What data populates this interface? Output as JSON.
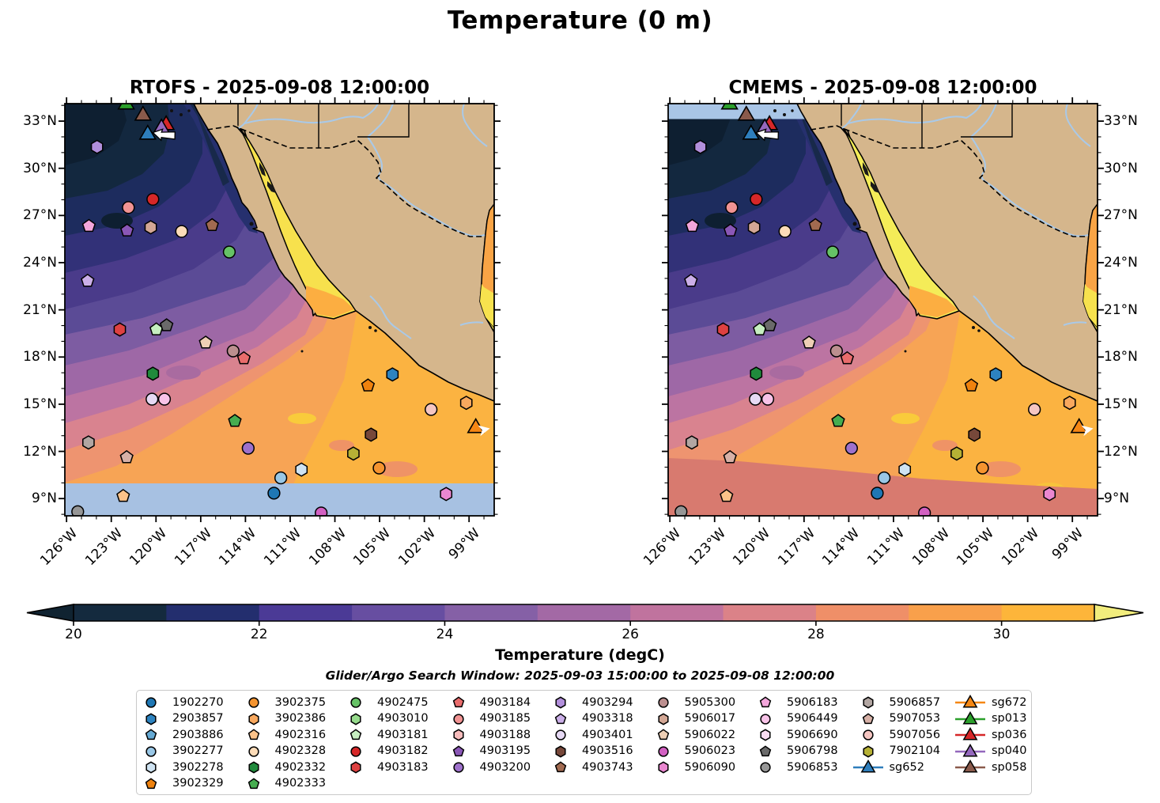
{
  "figure": {
    "title": "Temperature (0 m)",
    "subtitle": "Glider/Argo Search Window: 2025-09-03 15:00:00 to 2025-09-08 12:00:00"
  },
  "chart_data": {
    "type": "heatmap",
    "title": "Temperature (0 m)",
    "panels": [
      {
        "name": "RTOFS",
        "timestamp": "2025-09-08 12:00:00",
        "title": "RTOFS - 2025-09-08 12:00:00",
        "note": "no-data band (light blue) south of ~10N"
      },
      {
        "name": "CMEMS",
        "timestamp": "2025-09-08 12:00:00",
        "title": "CMEMS - 2025-09-08 12:00:00",
        "note": "no-data band (light blue) north of ~33N"
      }
    ],
    "axes": {
      "lon_ticks": [
        "126°W",
        "123°W",
        "120°W",
        "117°W",
        "114°W",
        "111°W",
        "108°W",
        "105°W",
        "102°W",
        "99°W"
      ],
      "lat_ticks": [
        "33°N",
        "30°N",
        "27°N",
        "24°N",
        "21°N",
        "18°N",
        "15°N",
        "12°N",
        "9°N"
      ],
      "lon_range_degW": [
        126.1,
        97.3
      ],
      "lat_range_degN": [
        7.9,
        34.1
      ]
    },
    "colorbar": {
      "label": "Temperature (degC)",
      "tick_labels": [
        "20",
        "22",
        "24",
        "26",
        "28",
        "30"
      ],
      "tick_values": [
        20,
        22,
        24,
        26,
        28,
        30
      ],
      "range_degC": [
        20,
        31
      ],
      "segment_colors": [
        "#142a3e",
        "#232e6e",
        "#4b3a96",
        "#674ea1",
        "#8560a6",
        "#a369a5",
        "#c0739e",
        "#db8288",
        "#ef8f68",
        "#f9a04b",
        "#fdb53a"
      ],
      "tip_left_color": "#102331",
      "tip_right_color": "#f2ed7d"
    },
    "search_window": {
      "start": "2025-09-03 15:00:00",
      "end": "2025-09-08 12:00:00"
    },
    "platforms": [
      {
        "id": "4903294",
        "kind": "argo",
        "shape": "hexagon",
        "color": "#b28fdb",
        "fx": 0.075,
        "fy": 0.105,
        "lon_degW": 123.9,
        "lat_degN": 31.3
      },
      {
        "id": "4903182",
        "kind": "argo",
        "shape": "circle",
        "color": "#d62728",
        "fx": 0.205,
        "fy": 0.232,
        "lon_degW": 120.2,
        "lat_degN": 28.0
      },
      {
        "id": "4903185",
        "kind": "argo",
        "shape": "circle",
        "color": "#f19393",
        "fx": 0.148,
        "fy": 0.252,
        "lon_degW": 121.8,
        "lat_degN": 27.5
      },
      {
        "id": "5906183",
        "kind": "argo",
        "shape": "pentagon",
        "color": "#f3a6db",
        "fx": 0.056,
        "fy": 0.297,
        "lon_degW": 124.5,
        "lat_degN": 26.3
      },
      {
        "id": "4903195",
        "kind": "argo",
        "shape": "pentagon",
        "color": "#8a57b6",
        "fx": 0.145,
        "fy": 0.308,
        "lon_degW": 121.9,
        "lat_degN": 26.0
      },
      {
        "id": "5906017",
        "kind": "argo",
        "shape": "hexagon",
        "color": "#d3a795",
        "fx": 0.2,
        "fy": 0.3,
        "lon_degW": 120.3,
        "lat_degN": 26.2
      },
      {
        "id": "4903743",
        "kind": "argo",
        "shape": "pentagon",
        "color": "#a16a50",
        "fx": 0.343,
        "fy": 0.295,
        "lon_degW": 116.2,
        "lat_degN": 26.4
      },
      {
        "id": "4902328",
        "kind": "argo",
        "shape": "circle",
        "color": "#fddcb8",
        "fx": 0.272,
        "fy": 0.31,
        "lon_degW": 118.3,
        "lat_degN": 26.0
      },
      {
        "id": "4902475",
        "kind": "argo",
        "shape": "circle",
        "color": "#66c266",
        "fx": 0.383,
        "fy": 0.36,
        "lon_degW": 115.1,
        "lat_degN": 24.7
      },
      {
        "id": "4903318",
        "kind": "argo",
        "shape": "pentagon",
        "color": "#cbafe8",
        "fx": 0.053,
        "fy": 0.43,
        "lon_degW": 124.6,
        "lat_degN": 22.8
      },
      {
        "id": "4903183",
        "kind": "argo",
        "shape": "hexagon",
        "color": "#de4141",
        "fx": 0.128,
        "fy": 0.548,
        "lon_degW": 122.4,
        "lat_degN": 19.7
      },
      {
        "id": "4903181",
        "kind": "argo",
        "shape": "pentagon",
        "color": "#c6eec0",
        "fx": 0.213,
        "fy": 0.548,
        "lon_degW": 120.0,
        "lat_degN": 19.7
      },
      {
        "id": "5906798",
        "kind": "argo",
        "shape": "pentagon",
        "color": "#6a6a6a",
        "fx": 0.237,
        "fy": 0.538,
        "lon_degW": 119.3,
        "lat_degN": 20.0
      },
      {
        "id": "5906022",
        "kind": "argo",
        "shape": "pentagon",
        "color": "#eecfb5",
        "fx": 0.328,
        "fy": 0.58,
        "lon_degW": 116.7,
        "lat_degN": 18.9
      },
      {
        "id": "5905300",
        "kind": "argo",
        "shape": "circle",
        "color": "#bc8f8f",
        "fx": 0.392,
        "fy": 0.6,
        "lon_degW": 114.8,
        "lat_degN": 18.4
      },
      {
        "id": "4903184",
        "kind": "argo",
        "shape": "pentagon",
        "color": "#e96c6c",
        "fx": 0.417,
        "fy": 0.618,
        "lon_degW": 114.1,
        "lat_degN": 17.9
      },
      {
        "id": "4902332",
        "kind": "argo",
        "shape": "hexagon",
        "color": "#208a3c",
        "fx": 0.205,
        "fy": 0.655,
        "lon_degW": 120.2,
        "lat_degN": 16.9
      },
      {
        "id": "2903857",
        "kind": "argo",
        "shape": "hexagon",
        "color": "#2d83c0",
        "fx": 0.763,
        "fy": 0.657,
        "lon_degW": 104.1,
        "lat_degN": 16.9
      },
      {
        "id": "3902329",
        "kind": "argo",
        "shape": "pentagon",
        "color": "#ef820e",
        "fx": 0.706,
        "fy": 0.684,
        "lon_degW": 105.8,
        "lat_degN": 16.2
      },
      {
        "id": "4903401",
        "kind": "argo",
        "shape": "circle",
        "color": "#e6d9f4",
        "fx": 0.203,
        "fy": 0.717,
        "lon_degW": 120.3,
        "lat_degN": 15.3
      },
      {
        "id": "5906449",
        "kind": "argo",
        "shape": "circle",
        "color": "#f8c3e8",
        "fx": 0.232,
        "fy": 0.717,
        "lon_degW": 119.4,
        "lat_degN": 15.3
      },
      {
        "id": "3902386",
        "kind": "argo",
        "shape": "hexagon",
        "color": "#f8a85e",
        "fx": 0.935,
        "fy": 0.726,
        "lon_degW": 99.2,
        "lat_degN": 15.1
      },
      {
        "id": "5907056",
        "kind": "argo",
        "shape": "circle",
        "color": "#f5c6c2",
        "fx": 0.853,
        "fy": 0.742,
        "lon_degW": 101.5,
        "lat_degN": 14.7
      },
      {
        "id": "4902333",
        "kind": "argo",
        "shape": "pentagon",
        "color": "#46ad50",
        "fx": 0.396,
        "fy": 0.77,
        "lon_degW": 114.7,
        "lat_degN": 13.9
      },
      {
        "id": "4903516",
        "kind": "argo",
        "shape": "hexagon",
        "color": "#77483a",
        "fx": 0.713,
        "fy": 0.803,
        "lon_degW": 105.6,
        "lat_degN": 13.1
      },
      {
        "id": "5906857",
        "kind": "argo",
        "shape": "hexagon",
        "color": "#b2a6a2",
        "fx": 0.055,
        "fy": 0.822,
        "lon_degW": 124.5,
        "lat_degN": 12.6
      },
      {
        "id": "4903200",
        "kind": "argo",
        "shape": "circle",
        "color": "#9e71cb",
        "fx": 0.427,
        "fy": 0.836,
        "lon_degW": 113.8,
        "lat_degN": 12.2
      },
      {
        "id": "7902104",
        "kind": "argo",
        "shape": "hexagon",
        "color": "#b6b135",
        "fx": 0.672,
        "fy": 0.849,
        "lon_degW": 106.7,
        "lat_degN": 11.9
      },
      {
        "id": "5907053",
        "kind": "argo",
        "shape": "pentagon",
        "color": "#d7b1a7",
        "fx": 0.144,
        "fy": 0.858,
        "lon_degW": 122.0,
        "lat_degN": 11.6
      },
      {
        "id": "3902375",
        "kind": "argo",
        "shape": "circle",
        "color": "#f5942f",
        "fx": 0.732,
        "fy": 0.884,
        "lon_degW": 105.0,
        "lat_degN": 10.9
      },
      {
        "id": "3902278",
        "kind": "argo",
        "shape": "hexagon",
        "color": "#cfe3f2",
        "fx": 0.551,
        "fy": 0.888,
        "lon_degW": 110.2,
        "lat_degN": 10.8
      },
      {
        "id": "3902277",
        "kind": "argo",
        "shape": "circle",
        "color": "#99c7e6",
        "fx": 0.503,
        "fy": 0.908,
        "lon_degW": 111.6,
        "lat_degN": 10.3
      },
      {
        "id": "1902270",
        "kind": "argo",
        "shape": "circle",
        "color": "#1f77b4",
        "fx": 0.487,
        "fy": 0.945,
        "lon_degW": 112.1,
        "lat_degN": 9.3
      },
      {
        "id": "5906090",
        "kind": "argo",
        "shape": "hexagon",
        "color": "#ea87d0",
        "fx": 0.888,
        "fy": 0.947,
        "lon_degW": 100.5,
        "lat_degN": 9.3
      },
      {
        "id": "4902316",
        "kind": "argo",
        "shape": "pentagon",
        "color": "#fbc289",
        "fx": 0.136,
        "fy": 0.952,
        "lon_degW": 122.2,
        "lat_degN": 9.2
      },
      {
        "id": "5906853",
        "kind": "argo",
        "shape": "circle",
        "color": "#969696",
        "fx": 0.03,
        "fy": 0.99,
        "lon_degW": 125.2,
        "lat_degN": 8.2
      },
      {
        "id": "5906023",
        "kind": "argo",
        "shape": "circle",
        "color": "#d260c2",
        "fx": 0.597,
        "fy": 0.993,
        "lon_degW": 108.9,
        "lat_degN": 8.1
      },
      {
        "id": "sg652",
        "kind": "glider",
        "shape": "triangle",
        "color": "#2e7ebc",
        "fx": 0.193,
        "fy": 0.075,
        "lon_degW": 120.5,
        "lat_degN": 32.1
      },
      {
        "id": "sp058",
        "kind": "glider",
        "shape": "triangle",
        "color": "#8a5a4b",
        "fx": 0.182,
        "fy": 0.029,
        "lon_degW": 120.9,
        "lat_degN": 33.3
      },
      {
        "id": "sp036",
        "kind": "glider",
        "shape": "triangle",
        "color": "#d62728",
        "fx": 0.236,
        "fy": 0.052,
        "lon_degW": 119.3,
        "lat_degN": 32.7
      },
      {
        "id": "sp040",
        "kind": "glider",
        "shape": "triangle",
        "color": "#9468bd",
        "fx": 0.225,
        "fy": 0.06,
        "lon_degW": 119.6,
        "lat_degN": 32.5
      },
      {
        "id": "sp013",
        "kind": "glider",
        "shape": "triangle",
        "color": "#2ca02c",
        "fx": 0.143,
        "fy": 0.002,
        "lon_degW": 122.0,
        "lat_degN": 34.0
      },
      {
        "id": "sg672",
        "kind": "glider",
        "shape": "triangle",
        "color": "#f58714",
        "fx": 0.957,
        "fy": 0.787,
        "lon_degW": 98.5,
        "lat_degN": 13.5
      }
    ],
    "map_arrows": [
      {
        "name": "glider-heading-arrow-west",
        "fx": 0.205,
        "fy": 0.07,
        "dir": "west"
      },
      {
        "name": "glider-heading-arrow-east",
        "fx": 0.972,
        "fy": 0.792,
        "dir": "east"
      }
    ]
  },
  "legend": {
    "columns": [
      [
        {
          "id": "1902270",
          "shape": "circle",
          "color": "#1f77b4"
        },
        {
          "id": "2903857",
          "shape": "hexagon",
          "color": "#2d83c0"
        },
        {
          "id": "2903886",
          "shape": "pentagon",
          "color": "#66aad4"
        },
        {
          "id": "3902277",
          "shape": "circle",
          "color": "#99c7e6"
        },
        {
          "id": "3902278",
          "shape": "hexagon",
          "color": "#cfe3f2"
        },
        {
          "id": "3902329",
          "shape": "pentagon",
          "color": "#ef820e"
        }
      ],
      [
        {
          "id": "3902375",
          "shape": "circle",
          "color": "#f5942f"
        },
        {
          "id": "3902386",
          "shape": "hexagon",
          "color": "#f8a85e"
        },
        {
          "id": "4902316",
          "shape": "pentagon",
          "color": "#fbc289"
        },
        {
          "id": "4902328",
          "shape": "circle",
          "color": "#fddcb8"
        },
        {
          "id": "4902332",
          "shape": "hexagon",
          "color": "#208a3c"
        },
        {
          "id": "4902333",
          "shape": "pentagon",
          "color": "#46ad50"
        }
      ],
      [
        {
          "id": "4902475",
          "shape": "circle",
          "color": "#66c266"
        },
        {
          "id": "4903010",
          "shape": "hexagon",
          "color": "#96db8c"
        },
        {
          "id": "4903181",
          "shape": "pentagon",
          "color": "#c6eec0"
        },
        {
          "id": "4903182",
          "shape": "circle",
          "color": "#d62728"
        },
        {
          "id": "4903183",
          "shape": "hexagon",
          "color": "#de4141"
        }
      ],
      [
        {
          "id": "4903184",
          "shape": "pentagon",
          "color": "#e96c6c"
        },
        {
          "id": "4903185",
          "shape": "circle",
          "color": "#f19393"
        },
        {
          "id": "4903188",
          "shape": "hexagon",
          "color": "#f7bcbc"
        },
        {
          "id": "4903195",
          "shape": "pentagon",
          "color": "#8a57b6"
        },
        {
          "id": "4903200",
          "shape": "circle",
          "color": "#9e71cb"
        }
      ],
      [
        {
          "id": "4903294",
          "shape": "hexagon",
          "color": "#b28fdb"
        },
        {
          "id": "4903318",
          "shape": "pentagon",
          "color": "#cbafe8"
        },
        {
          "id": "4903401",
          "shape": "circle",
          "color": "#e6d9f4"
        },
        {
          "id": "4903516",
          "shape": "hexagon",
          "color": "#77483a"
        },
        {
          "id": "4903743",
          "shape": "pentagon",
          "color": "#a16a50"
        }
      ],
      [
        {
          "id": "5905300",
          "shape": "circle",
          "color": "#bc8f8f"
        },
        {
          "id": "5906017",
          "shape": "hexagon",
          "color": "#d3a795"
        },
        {
          "id": "5906022",
          "shape": "pentagon",
          "color": "#eecfb5"
        },
        {
          "id": "5906023",
          "shape": "circle",
          "color": "#d260c2"
        },
        {
          "id": "5906090",
          "shape": "hexagon",
          "color": "#ea87d0"
        }
      ],
      [
        {
          "id": "5906183",
          "shape": "pentagon",
          "color": "#f3a6db"
        },
        {
          "id": "5906449",
          "shape": "circle",
          "color": "#f8c3e8"
        },
        {
          "id": "5906690",
          "shape": "hexagon",
          "color": "#fbdcf2"
        },
        {
          "id": "5906798",
          "shape": "pentagon",
          "color": "#6a6a6a"
        },
        {
          "id": "5906853",
          "shape": "circle",
          "color": "#969696"
        }
      ],
      [
        {
          "id": "5906857",
          "shape": "hexagon",
          "color": "#b2a6a2"
        },
        {
          "id": "5907053",
          "shape": "pentagon",
          "color": "#d7b1a7"
        },
        {
          "id": "5907056",
          "shape": "circle",
          "color": "#f5c6c2"
        },
        {
          "id": "7902104",
          "shape": "hexagon",
          "color": "#b6b135"
        },
        {
          "id": "sg652",
          "shape": "glider",
          "color": "#2e7ebc"
        }
      ],
      [
        {
          "id": "sg672",
          "shape": "glider",
          "color": "#f58714"
        },
        {
          "id": "sp013",
          "shape": "glider",
          "color": "#2ca02c"
        },
        {
          "id": "sp036",
          "shape": "glider",
          "color": "#d62728"
        },
        {
          "id": "sp040",
          "shape": "glider",
          "color": "#9468bd"
        },
        {
          "id": "sp058",
          "shape": "glider",
          "color": "#8a5a4b"
        }
      ]
    ]
  },
  "map_colors": {
    "land": "#d5b68c",
    "coastline": "#000000",
    "river": "#a9c9e8",
    "no_data": "#a7c1e2",
    "gulf_yellow_rtofs": "#f7e14d",
    "gulf_yellow_cmems": "#f4ec58",
    "cmems_bottom_band": "#d87a6f"
  }
}
